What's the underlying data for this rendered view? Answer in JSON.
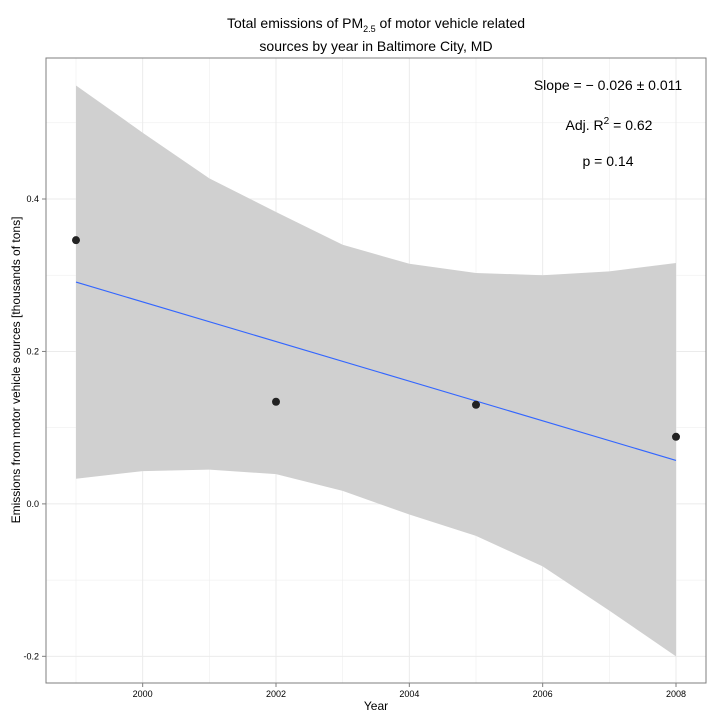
{
  "chart_data": {
    "type": "scatter",
    "title": {
      "line1_prefix": "Total emissions of PM",
      "line1_sub": "2.5",
      "line1_suffix": " of motor vehicle related",
      "line2": "sources by year in Baltimore City, MD"
    },
    "xlabel": "Year",
    "ylabel": "Emissions from motor vehicle sources [thousands of tons]",
    "xlim": [
      1998.55,
      2008.45
    ],
    "ylim": [
      -0.235,
      0.585
    ],
    "x_ticks": [
      2000,
      2002,
      2004,
      2006,
      2008
    ],
    "x_tick_labels": [
      "2000",
      "2002",
      "2004",
      "2006",
      "2008"
    ],
    "y_ticks": [
      -0.2,
      0.0,
      0.2,
      0.4
    ],
    "y_tick_labels": [
      "-0.2",
      "0.0",
      "0.2",
      "0.4"
    ],
    "points": {
      "x": [
        1999,
        2002,
        2005,
        2008
      ],
      "y": [
        0.346,
        0.134,
        0.13,
        0.088
      ]
    },
    "fit_line": {
      "x": [
        1999,
        2008
      ],
      "y": [
        0.291,
        0.057
      ],
      "color": "#3366FF"
    },
    "confidence_band": {
      "x": [
        1999,
        2000,
        2001,
        2002,
        2003,
        2004,
        2005,
        2006,
        2007,
        2008
      ],
      "lower": [
        0.033,
        0.043,
        0.045,
        0.039,
        0.017,
        -0.014,
        -0.042,
        -0.082,
        -0.14,
        -0.2
      ],
      "upper": [
        0.549,
        0.487,
        0.427,
        0.383,
        0.34,
        0.315,
        0.303,
        0.3,
        0.305,
        0.316
      ],
      "color": "#D0D0D0"
    },
    "annotations": {
      "slope": "Slope = − 0.026 ± 0.011",
      "r2_prefix": "Adj. R",
      "r2_sup": "2",
      "r2_suffix": " = 0.62",
      "p": "p = 0.14"
    },
    "grid": true,
    "colors": {
      "panel_border": "#7F7F7F",
      "grid": "#EBEBEB",
      "point": "#222222"
    }
  }
}
